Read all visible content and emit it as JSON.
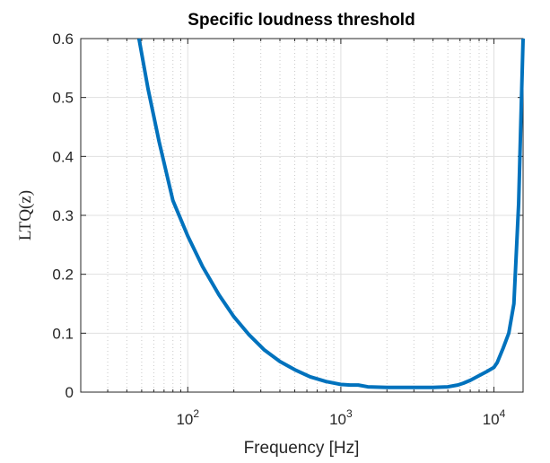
{
  "chart_data": {
    "type": "line",
    "title": "Specific loudness threshold",
    "xlabel": "Frequency [Hz]",
    "ylabel": "LTQ(z)",
    "xscale": "log",
    "xlim": [
      20,
      15500
    ],
    "ylim": [
      0,
      0.6
    ],
    "grid": true,
    "line_color": "#0072BD",
    "x_tick_values": [
      100,
      1000,
      10000
    ],
    "x_tick_labels": [
      {
        "base": "10",
        "exp": "2"
      },
      {
        "base": "10",
        "exp": "3"
      },
      {
        "base": "10",
        "exp": "4"
      }
    ],
    "y_tick_values": [
      0,
      0.1,
      0.2,
      0.3,
      0.4,
      0.5,
      0.6
    ],
    "y_tick_labels": [
      "0",
      "0.1",
      "0.2",
      "0.3",
      "0.4",
      "0.5",
      "0.6"
    ],
    "series": [
      {
        "x": [
          48,
          55,
          65,
          80,
          100,
          125,
          160,
          200,
          250,
          315,
          400,
          500,
          630,
          800,
          1000,
          1150,
          1300,
          1500,
          2000,
          2500,
          3150,
          4000,
          5000,
          5800,
          6300,
          7000,
          8000,
          9000,
          10000,
          10500,
          11500,
          12500,
          13500,
          14500,
          15500
        ],
        "y": [
          0.6,
          0.515,
          0.425,
          0.325,
          0.265,
          0.213,
          0.165,
          0.128,
          0.098,
          0.072,
          0.052,
          0.038,
          0.026,
          0.018,
          0.013,
          0.012,
          0.012,
          0.009,
          0.008,
          0.008,
          0.008,
          0.008,
          0.009,
          0.012,
          0.015,
          0.02,
          0.028,
          0.035,
          0.042,
          0.05,
          0.075,
          0.1,
          0.15,
          0.32,
          0.6
        ]
      }
    ]
  }
}
